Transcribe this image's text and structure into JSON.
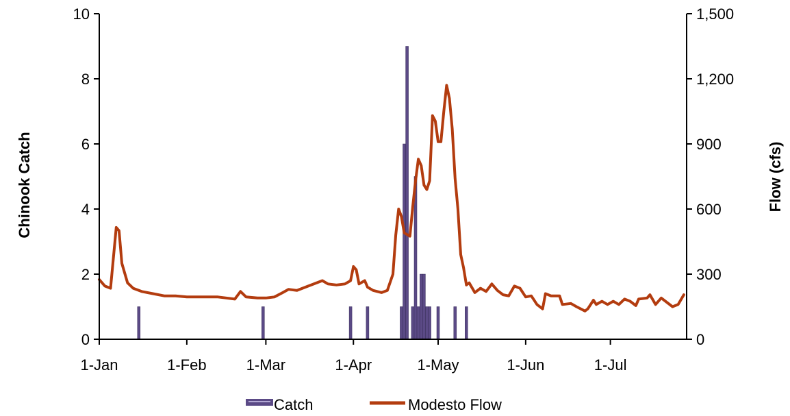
{
  "chart_data": {
    "type": "bar+line",
    "title": "",
    "left_axis": {
      "label": "Chinook Catch",
      "ylim": [
        0,
        10
      ],
      "ticks": [
        0,
        2,
        4,
        6,
        8,
        10
      ],
      "tick_labels": [
        "0",
        "2",
        "4",
        "6",
        "8",
        "10"
      ]
    },
    "right_axis": {
      "label": "Flow (cfs)",
      "ylim": [
        0,
        1500
      ],
      "ticks": [
        0,
        300,
        600,
        900,
        1200,
        1500
      ],
      "tick_labels": [
        "0",
        "300",
        "600",
        "900",
        "1,200",
        "1,500"
      ]
    },
    "x_axis": {
      "type": "date",
      "range": [
        "01-01",
        "07-28"
      ],
      "ticks": [
        "01-01",
        "02-01",
        "03-01",
        "04-01",
        "05-01",
        "06-01",
        "07-01"
      ],
      "tick_labels": [
        "1-Jan",
        "1-Feb",
        "1-Mar",
        "1-Apr",
        "1-May",
        "1-Jun",
        "1-Jul"
      ]
    },
    "grid": false,
    "legend_position": "bottom",
    "series": [
      {
        "name": "Catch",
        "type": "bar",
        "axis": "left",
        "color": "#5b4a86",
        "points": [
          {
            "x": "01-15",
            "y": 1
          },
          {
            "x": "02-28",
            "y": 1
          },
          {
            "x": "03-31",
            "y": 1
          },
          {
            "x": "04-06",
            "y": 1
          },
          {
            "x": "04-18",
            "y": 1
          },
          {
            "x": "04-19",
            "y": 6
          },
          {
            "x": "04-20",
            "y": 9
          },
          {
            "x": "04-22",
            "y": 1
          },
          {
            "x": "04-23",
            "y": 5
          },
          {
            "x": "04-24",
            "y": 1
          },
          {
            "x": "04-25",
            "y": 2
          },
          {
            "x": "04-26",
            "y": 2
          },
          {
            "x": "04-27",
            "y": 1
          },
          {
            "x": "04-28",
            "y": 1
          },
          {
            "x": "05-01",
            "y": 1
          },
          {
            "x": "05-07",
            "y": 1
          },
          {
            "x": "05-11",
            "y": 1
          }
        ]
      },
      {
        "name": "Modesto Flow",
        "type": "line",
        "axis": "right",
        "color": "#b33c0f",
        "points": [
          {
            "x": "01-01",
            "y": 275
          },
          {
            "x": "01-03",
            "y": 245
          },
          {
            "x": "01-05",
            "y": 235
          },
          {
            "x": "01-07",
            "y": 515
          },
          {
            "x": "01-08",
            "y": 500
          },
          {
            "x": "01-09",
            "y": 350
          },
          {
            "x": "01-11",
            "y": 260
          },
          {
            "x": "01-13",
            "y": 235
          },
          {
            "x": "01-16",
            "y": 220
          },
          {
            "x": "01-20",
            "y": 210
          },
          {
            "x": "01-24",
            "y": 200
          },
          {
            "x": "01-28",
            "y": 200
          },
          {
            "x": "02-01",
            "y": 195
          },
          {
            "x": "02-05",
            "y": 195
          },
          {
            "x": "02-09",
            "y": 195
          },
          {
            "x": "02-12",
            "y": 195
          },
          {
            "x": "02-15",
            "y": 190
          },
          {
            "x": "02-18",
            "y": 185
          },
          {
            "x": "02-20",
            "y": 220
          },
          {
            "x": "02-22",
            "y": 195
          },
          {
            "x": "02-26",
            "y": 190
          },
          {
            "x": "03-01",
            "y": 190
          },
          {
            "x": "03-04",
            "y": 195
          },
          {
            "x": "03-07",
            "y": 215
          },
          {
            "x": "03-09",
            "y": 230
          },
          {
            "x": "03-12",
            "y": 225
          },
          {
            "x": "03-15",
            "y": 240
          },
          {
            "x": "03-18",
            "y": 255
          },
          {
            "x": "03-21",
            "y": 270
          },
          {
            "x": "03-23",
            "y": 255
          },
          {
            "x": "03-26",
            "y": 250
          },
          {
            "x": "03-29",
            "y": 255
          },
          {
            "x": "03-31",
            "y": 270
          },
          {
            "x": "04-01",
            "y": 335
          },
          {
            "x": "04-02",
            "y": 320
          },
          {
            "x": "04-03",
            "y": 255
          },
          {
            "x": "04-05",
            "y": 270
          },
          {
            "x": "04-06",
            "y": 240
          },
          {
            "x": "04-08",
            "y": 225
          },
          {
            "x": "04-11",
            "y": 215
          },
          {
            "x": "04-13",
            "y": 225
          },
          {
            "x": "04-15",
            "y": 300
          },
          {
            "x": "04-16",
            "y": 480
          },
          {
            "x": "04-17",
            "y": 600
          },
          {
            "x": "04-18",
            "y": 565
          },
          {
            "x": "04-19",
            "y": 490
          },
          {
            "x": "04-21",
            "y": 475
          },
          {
            "x": "04-22",
            "y": 610
          },
          {
            "x": "04-23",
            "y": 730
          },
          {
            "x": "04-24",
            "y": 830
          },
          {
            "x": "04-25",
            "y": 800
          },
          {
            "x": "04-26",
            "y": 710
          },
          {
            "x": "04-27",
            "y": 690
          },
          {
            "x": "04-28",
            "y": 730
          },
          {
            "x": "04-29",
            "y": 1030
          },
          {
            "x": "04-30",
            "y": 1005
          },
          {
            "x": "05-01",
            "y": 910
          },
          {
            "x": "05-02",
            "y": 910
          },
          {
            "x": "05-03",
            "y": 1050
          },
          {
            "x": "05-04",
            "y": 1170
          },
          {
            "x": "05-05",
            "y": 1110
          },
          {
            "x": "05-06",
            "y": 970
          },
          {
            "x": "05-07",
            "y": 740
          },
          {
            "x": "05-08",
            "y": 600
          },
          {
            "x": "05-09",
            "y": 390
          },
          {
            "x": "05-10",
            "y": 330
          },
          {
            "x": "05-11",
            "y": 250
          },
          {
            "x": "05-12",
            "y": 260
          },
          {
            "x": "05-14",
            "y": 215
          },
          {
            "x": "05-16",
            "y": 235
          },
          {
            "x": "05-18",
            "y": 220
          },
          {
            "x": "05-20",
            "y": 255
          },
          {
            "x": "05-22",
            "y": 225
          },
          {
            "x": "05-24",
            "y": 205
          },
          {
            "x": "05-26",
            "y": 200
          },
          {
            "x": "05-28",
            "y": 245
          },
          {
            "x": "05-30",
            "y": 235
          },
          {
            "x": "06-01",
            "y": 195
          },
          {
            "x": "06-03",
            "y": 200
          },
          {
            "x": "06-05",
            "y": 160
          },
          {
            "x": "06-07",
            "y": 140
          },
          {
            "x": "06-08",
            "y": 210
          },
          {
            "x": "06-10",
            "y": 200
          },
          {
            "x": "06-13",
            "y": 200
          },
          {
            "x": "06-14",
            "y": 160
          },
          {
            "x": "06-17",
            "y": 165
          },
          {
            "x": "06-19",
            "y": 150
          },
          {
            "x": "06-22",
            "y": 130
          },
          {
            "x": "06-23",
            "y": 140
          },
          {
            "x": "06-25",
            "y": 180
          },
          {
            "x": "06-26",
            "y": 160
          },
          {
            "x": "06-28",
            "y": 175
          },
          {
            "x": "06-30",
            "y": 160
          },
          {
            "x": "07-02",
            "y": 175
          },
          {
            "x": "07-04",
            "y": 160
          },
          {
            "x": "07-06",
            "y": 185
          },
          {
            "x": "07-08",
            "y": 175
          },
          {
            "x": "07-10",
            "y": 155
          },
          {
            "x": "07-11",
            "y": 185
          },
          {
            "x": "07-14",
            "y": 190
          },
          {
            "x": "07-15",
            "y": 205
          },
          {
            "x": "07-17",
            "y": 160
          },
          {
            "x": "07-19",
            "y": 190
          },
          {
            "x": "07-23",
            "y": 150
          },
          {
            "x": "07-25",
            "y": 160
          },
          {
            "x": "07-27",
            "y": 205
          }
        ]
      }
    ]
  }
}
